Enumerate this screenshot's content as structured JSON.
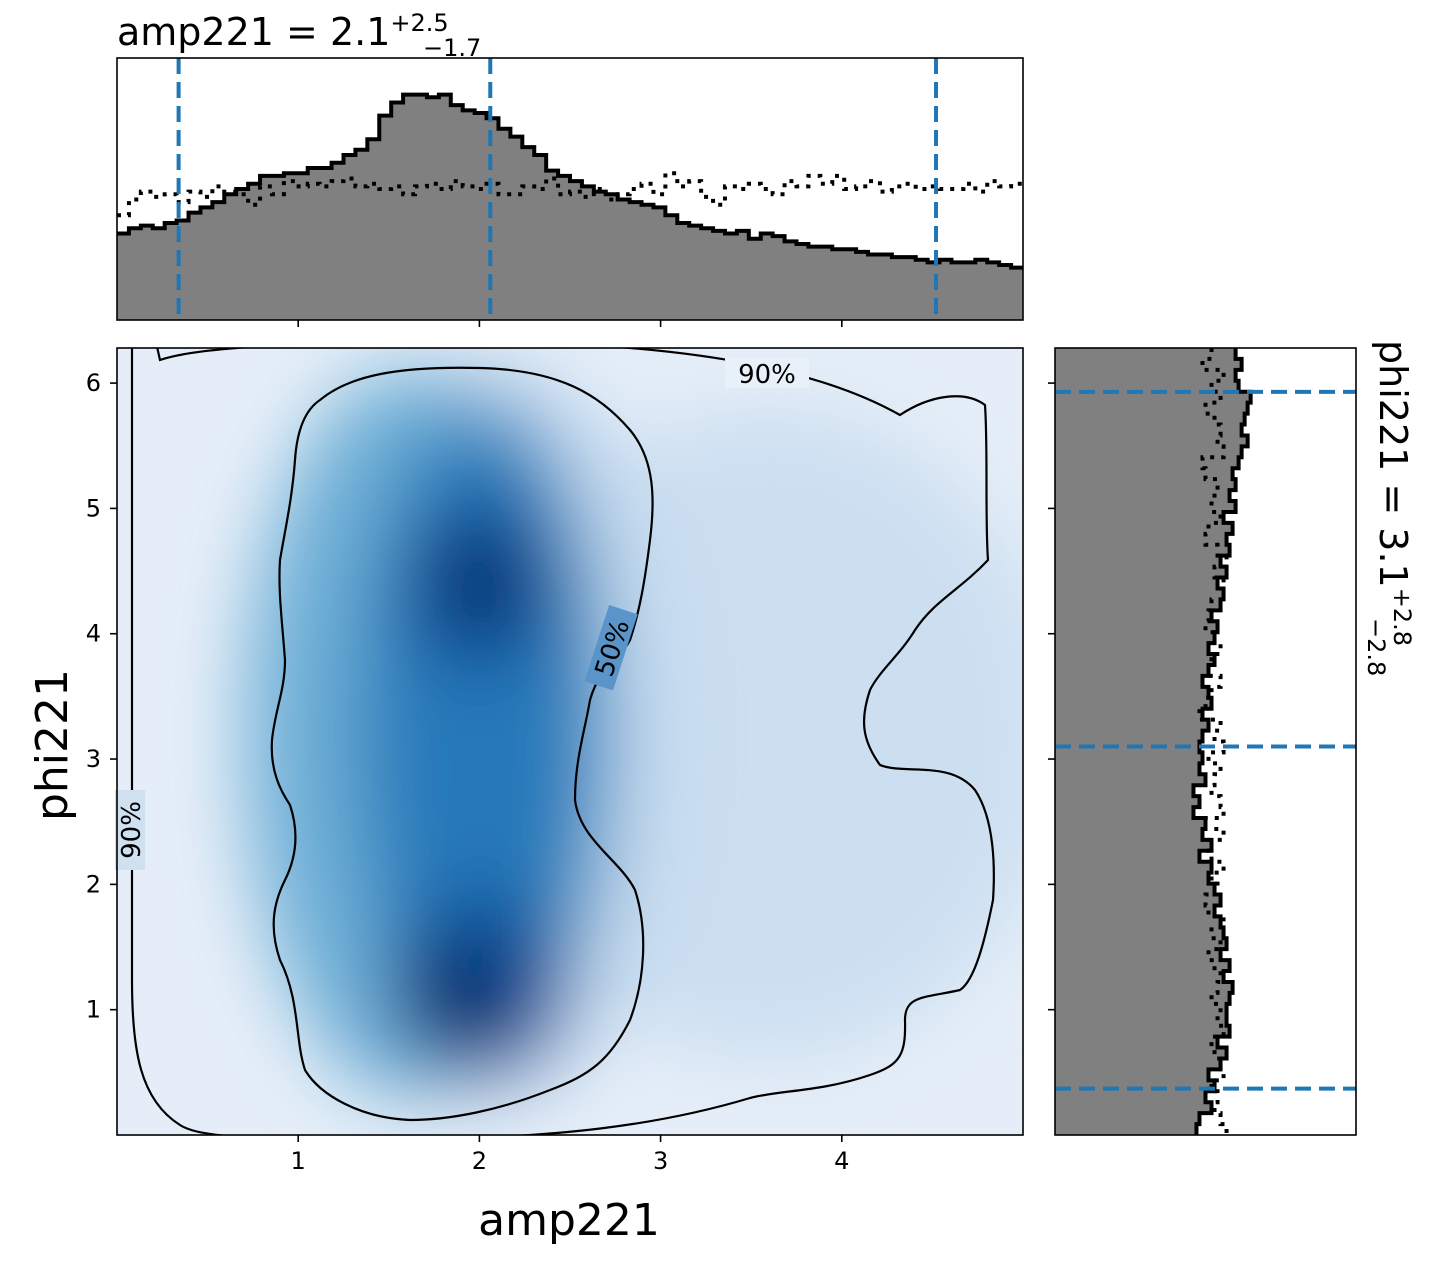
{
  "chart_data": {
    "type": "joint-density",
    "xlabel": "amp221",
    "ylabel": "phi221",
    "x_ticks": [
      "1",
      "2",
      "3",
      "4"
    ],
    "y_ticks": [
      "1",
      "2",
      "3",
      "4",
      "5",
      "6"
    ],
    "xlim": [
      0.0,
      5.0
    ],
    "ylim": [
      0.0,
      6.28
    ],
    "colors": {
      "density": "Blues",
      "hist_fill": "#808080",
      "quantile_line": "#1f77b4"
    },
    "contour_labels": [
      "90%",
      "50%",
      "90%"
    ],
    "top_title": {
      "prefix": "amp221 = 2.1",
      "sup": "+2.5",
      "sub": "−1.7"
    },
    "right_title": {
      "prefix": "phi221 = 3.1",
      "sup": "+2.8",
      "sub": "−2.8"
    },
    "x_quantiles": [
      0.34,
      2.06,
      4.52
    ],
    "y_quantiles": [
      0.37,
      3.1,
      5.93
    ],
    "x_hist_posterior": [
      0.33,
      0.35,
      0.36,
      0.35,
      0.37,
      0.38,
      0.41,
      0.43,
      0.45,
      0.48,
      0.5,
      0.52,
      0.55,
      0.55,
      0.56,
      0.56,
      0.58,
      0.58,
      0.6,
      0.63,
      0.65,
      0.69,
      0.78,
      0.83,
      0.86,
      0.86,
      0.85,
      0.86,
      0.82,
      0.8,
      0.79,
      0.77,
      0.73,
      0.7,
      0.66,
      0.63,
      0.57,
      0.55,
      0.53,
      0.51,
      0.49,
      0.48,
      0.46,
      0.45,
      0.44,
      0.43,
      0.4,
      0.37,
      0.36,
      0.35,
      0.34,
      0.33,
      0.34,
      0.31,
      0.33,
      0.32,
      0.3,
      0.29,
      0.28,
      0.28,
      0.27,
      0.27,
      0.26,
      0.25,
      0.25,
      0.24,
      0.24,
      0.23,
      0.22,
      0.23,
      0.22,
      0.22,
      0.23,
      0.22,
      0.21,
      0.2
    ],
    "x_hist_prior": [
      0.4,
      0.46,
      0.49,
      0.47,
      0.48,
      0.45,
      0.49,
      0.47,
      0.51,
      0.49,
      0.48,
      0.44,
      0.51,
      0.48,
      0.53,
      0.51,
      0.52,
      0.51,
      0.53,
      0.54,
      0.51,
      0.52,
      0.5,
      0.51,
      0.48,
      0.51,
      0.52,
      0.5,
      0.53,
      0.51,
      0.5,
      0.52,
      0.48,
      0.48,
      0.51,
      0.5,
      0.54,
      0.48,
      0.49,
      0.47,
      0.5,
      0.46,
      0.48,
      0.5,
      0.52,
      0.48,
      0.56,
      0.51,
      0.53,
      0.47,
      0.44,
      0.51,
      0.5,
      0.52,
      0.5,
      0.48,
      0.53,
      0.51,
      0.55,
      0.52,
      0.55,
      0.5,
      0.51,
      0.53,
      0.49,
      0.51,
      0.52,
      0.5,
      0.51,
      0.5,
      0.5,
      0.52,
      0.49,
      0.53,
      0.51,
      0.52
    ],
    "y_hist_posterior": [
      0.6,
      0.62,
      0.6,
      0.61,
      0.65,
      0.64,
      0.63,
      0.62,
      0.64,
      0.62,
      0.61,
      0.59,
      0.6,
      0.58,
      0.6,
      0.56,
      0.59,
      0.57,
      0.58,
      0.55,
      0.57,
      0.54,
      0.56,
      0.55,
      0.52,
      0.54,
      0.53,
      0.51,
      0.53,
      0.51,
      0.49,
      0.51,
      0.52,
      0.49,
      0.51,
      0.49,
      0.48,
      0.49,
      0.48,
      0.5,
      0.46,
      0.48,
      0.46,
      0.5,
      0.49,
      0.52,
      0.48,
      0.52,
      0.51,
      0.53,
      0.55,
      0.53,
      0.55,
      0.56,
      0.57,
      0.55,
      0.58,
      0.56,
      0.59,
      0.58,
      0.57,
      0.57,
      0.58,
      0.54,
      0.57,
      0.55,
      0.51,
      0.53,
      0.5,
      0.52,
      0.48,
      0.47
    ],
    "y_hist_prior": [
      0.52,
      0.49,
      0.56,
      0.52,
      0.55,
      0.5,
      0.53,
      0.55,
      0.54,
      0.56,
      0.49,
      0.5,
      0.54,
      0.53,
      0.52,
      0.55,
      0.51,
      0.5,
      0.54,
      0.57,
      0.53,
      0.56,
      0.55,
      0.52,
      0.51,
      0.5,
      0.53,
      0.55,
      0.52,
      0.51,
      0.55,
      0.52,
      0.5,
      0.48,
      0.55,
      0.53,
      0.56,
      0.51,
      0.55,
      0.53,
      0.52,
      0.55,
      0.56,
      0.5,
      0.56,
      0.51,
      0.52,
      0.56,
      0.52,
      0.54,
      0.5,
      0.51,
      0.56,
      0.52,
      0.55,
      0.51,
      0.53,
      0.55,
      0.54,
      0.52,
      0.55,
      0.54,
      0.56,
      0.52,
      0.53,
      0.55,
      0.56,
      0.52,
      0.54,
      0.53,
      0.55,
      0.57
    ]
  }
}
